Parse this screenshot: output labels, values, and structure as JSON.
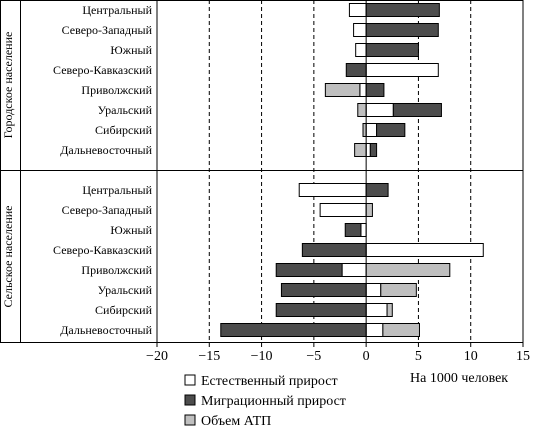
{
  "chart_data": {
    "type": "bar",
    "orientation": "horizontal",
    "stacked": true,
    "xlabel": "На 1000 человек",
    "xlim": [
      -20,
      15
    ],
    "x_ticks": [
      -20,
      -15,
      -10,
      -5,
      0,
      5,
      10,
      15
    ],
    "x_tick_labels": [
      "−20",
      "−15",
      "−10",
      "−5",
      "0",
      "5",
      "10",
      "15"
    ],
    "grid": "dashed vertical lines at −15, −10, −5, 5, 10",
    "legend_position": "bottom",
    "series": [
      {
        "key": "natural",
        "name": "Естественный прирост",
        "color": "#ffffff"
      },
      {
        "key": "migration",
        "name": "Миграционный прирост",
        "color": "#4d4d4d"
      },
      {
        "key": "atp",
        "name": "Объем АТП",
        "color": "#bfbfbf"
      }
    ],
    "groups": [
      {
        "label": "Городское население",
        "categories": [
          {
            "name": "Центральный",
            "natural": -1.6,
            "migration": 7,
            "atp": null
          },
          {
            "name": "Северо-Западный",
            "natural": -1.2,
            "migration": 6.9,
            "atp": null
          },
          {
            "name": "Южный",
            "natural": -1.0,
            "migration": 5,
            "atp": null
          },
          {
            "name": "Северо-Кавказский",
            "natural": 6.9,
            "migration": -1.9,
            "atp": null
          },
          {
            "name": "Приволжский",
            "natural": -0.6,
            "migration": 1.7,
            "atp": -3.3
          },
          {
            "name": "Уральский",
            "natural": 2.6,
            "migration": 4.6,
            "atp": -0.8
          },
          {
            "name": "Сибирский",
            "natural": 1.0,
            "migration": 2.7,
            "atp": -0.3
          },
          {
            "name": "Дальневосточный",
            "natural": 0.4,
            "migration": 0.6,
            "atp": -1.1
          }
        ]
      },
      {
        "label": "Сельское население",
        "categories": [
          {
            "name": "Центральный",
            "natural": -6.4,
            "migration": 2.1,
            "atp": null
          },
          {
            "name": "Северо-Западный",
            "natural": -4.4,
            "migration": null,
            "atp": 0.6
          },
          {
            "name": "Южный",
            "natural": -0.5,
            "migration": -1.5,
            "atp": null
          },
          {
            "name": "Северо-Кавказский",
            "natural": 11.2,
            "migration": -6.1,
            "atp": null
          },
          {
            "name": "Приволжский",
            "natural": -2.3,
            "migration": -6.3,
            "atp": 8.0
          },
          {
            "name": "Уральский",
            "natural": 1.4,
            "migration": -8.1,
            "atp": 3.4
          },
          {
            "name": "Сибирский",
            "natural": 2.0,
            "migration": -8.6,
            "atp": 0.5
          },
          {
            "name": "Дальневосточный",
            "natural": 1.6,
            "migration": -13.9,
            "atp": 3.5
          }
        ]
      }
    ]
  }
}
